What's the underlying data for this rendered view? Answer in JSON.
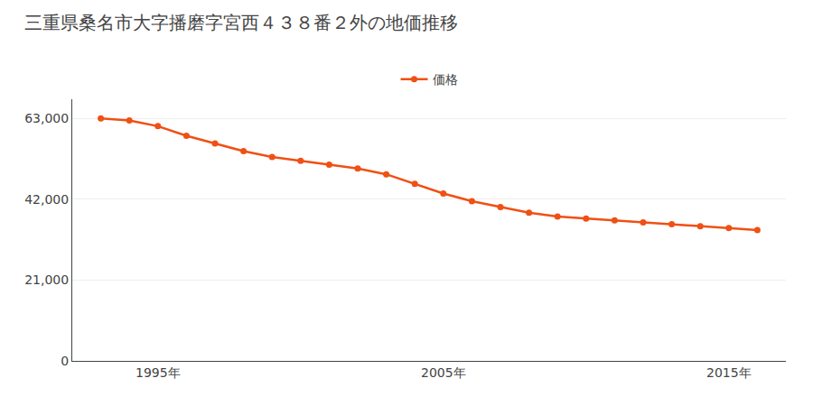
{
  "chart_data": {
    "type": "line",
    "title": "三重県桑名市大字播磨字宮西４３８番２外の地価推移",
    "x": [
      1993,
      1994,
      1995,
      1996,
      1997,
      1998,
      1999,
      2000,
      2001,
      2002,
      2003,
      2004,
      2005,
      2006,
      2007,
      2008,
      2009,
      2010,
      2011,
      2012,
      2013,
      2014,
      2015,
      2016
    ],
    "series": [
      {
        "name": "価格",
        "color": "#f05014",
        "marker": "circle",
        "line_style": "solid",
        "values": [
          63000,
          62500,
          61000,
          58500,
          56500,
          54500,
          53000,
          52000,
          51000,
          50000,
          48500,
          46000,
          43500,
          41500,
          40000,
          38500,
          37500,
          37000,
          36500,
          36000,
          35500,
          35000,
          34500,
          34000
        ]
      }
    ],
    "xlim": [
      1992,
      2017
    ],
    "xticks": [
      {
        "value": 1995,
        "label": "1995年"
      },
      {
        "value": 2005,
        "label": "2005年"
      },
      {
        "value": 2015,
        "label": "2015年"
      }
    ],
    "ylim": [
      0,
      68000
    ],
    "yticks": [
      0,
      {
        "value": 21000,
        "label": "21,000"
      },
      {
        "value": 42000,
        "label": "42,000"
      },
      {
        "value": 63000,
        "label": "63,000"
      }
    ],
    "grid": true,
    "legend": "top"
  }
}
